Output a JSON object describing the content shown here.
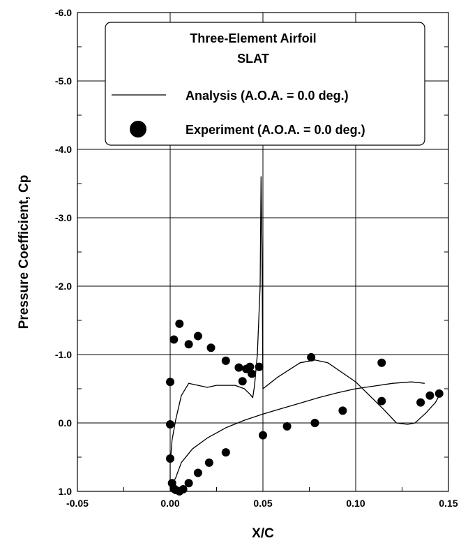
{
  "chart_data": {
    "type": "line",
    "title": "Three-Element Airfoil",
    "subtitle": "SLAT",
    "xlabel": "X/C",
    "ylabel": "Pressure Coefficient, Cp",
    "xlim": [
      -0.05,
      0.15
    ],
    "ylim": [
      1.0,
      -6.0
    ],
    "y_axis_inverted": true,
    "grid": true,
    "legend_position": "top-right",
    "x_ticks": [
      "-0.05",
      "0.00",
      "0.05",
      "0.10",
      "0.15"
    ],
    "y_ticks": [
      "-6.0",
      "-5.0",
      "-4.0",
      "-3.0",
      "-2.0",
      "-1.0",
      "0.0",
      "1.0"
    ],
    "series": [
      {
        "name": "Analysis (A.O.A. = 0.0 deg.)",
        "style": "line",
        "color": "#000000",
        "x": [
          0.137,
          0.134,
          0.13,
          0.12,
          0.11,
          0.1,
          0.09,
          0.08,
          0.07,
          0.06,
          0.05,
          0.04,
          0.03,
          0.02,
          0.012,
          0.006,
          0.003,
          0.0,
          0.0,
          0.001,
          0.003,
          0.006,
          0.01,
          0.015,
          0.02,
          0.025,
          0.03,
          0.035,
          0.04,
          0.043,
          0.0445,
          0.0455,
          0.047,
          0.0485,
          0.049,
          0.0495,
          0.05,
          0.058,
          0.07,
          0.078,
          0.085,
          0.1,
          0.115,
          0.122,
          0.128,
          0.132,
          0.138,
          0.143,
          0.145
        ],
        "y": [
          -0.58,
          -0.59,
          -0.6,
          -0.58,
          -0.54,
          -0.5,
          -0.44,
          -0.37,
          -0.29,
          -0.21,
          -0.13,
          -0.04,
          0.07,
          0.22,
          0.38,
          0.58,
          0.8,
          0.95,
          0.6,
          0.25,
          -0.05,
          -0.4,
          -0.58,
          -0.55,
          -0.52,
          -0.55,
          -0.55,
          -0.55,
          -0.5,
          -0.42,
          -0.37,
          -0.55,
          -1.0,
          -2.0,
          -3.6,
          -2.5,
          -0.5,
          -0.67,
          -0.88,
          -0.92,
          -0.88,
          -0.6,
          -0.2,
          0.0,
          0.02,
          0.0,
          -0.15,
          -0.3,
          -0.4
        ]
      },
      {
        "name": "Experiment (A.O.A. = 0.0 deg.)",
        "style": "marker",
        "color": "#000000",
        "x": [
          0.0,
          0.0,
          0.0,
          0.001,
          0.002,
          0.003,
          0.005,
          0.007,
          0.01,
          0.015,
          0.021,
          0.03,
          0.05,
          0.063,
          0.078,
          0.093,
          0.114,
          0.135,
          0.14,
          0.145,
          0.002,
          0.005,
          0.01,
          0.015,
          0.022,
          0.03,
          0.037,
          0.039,
          0.041,
          0.043,
          0.044,
          0.048,
          0.076,
          0.114
        ],
        "y": [
          0.02,
          -0.6,
          0.52,
          0.88,
          0.96,
          0.98,
          1.0,
          0.97,
          0.88,
          0.73,
          0.58,
          0.43,
          0.18,
          0.05,
          0.0,
          -0.18,
          -0.32,
          -0.3,
          -0.4,
          -0.43,
          -1.22,
          -1.45,
          -1.15,
          -1.27,
          -1.1,
          -0.91,
          -0.81,
          -0.61,
          -0.79,
          -0.82,
          -0.72,
          -0.82,
          -0.96,
          -0.88
        ]
      }
    ]
  }
}
